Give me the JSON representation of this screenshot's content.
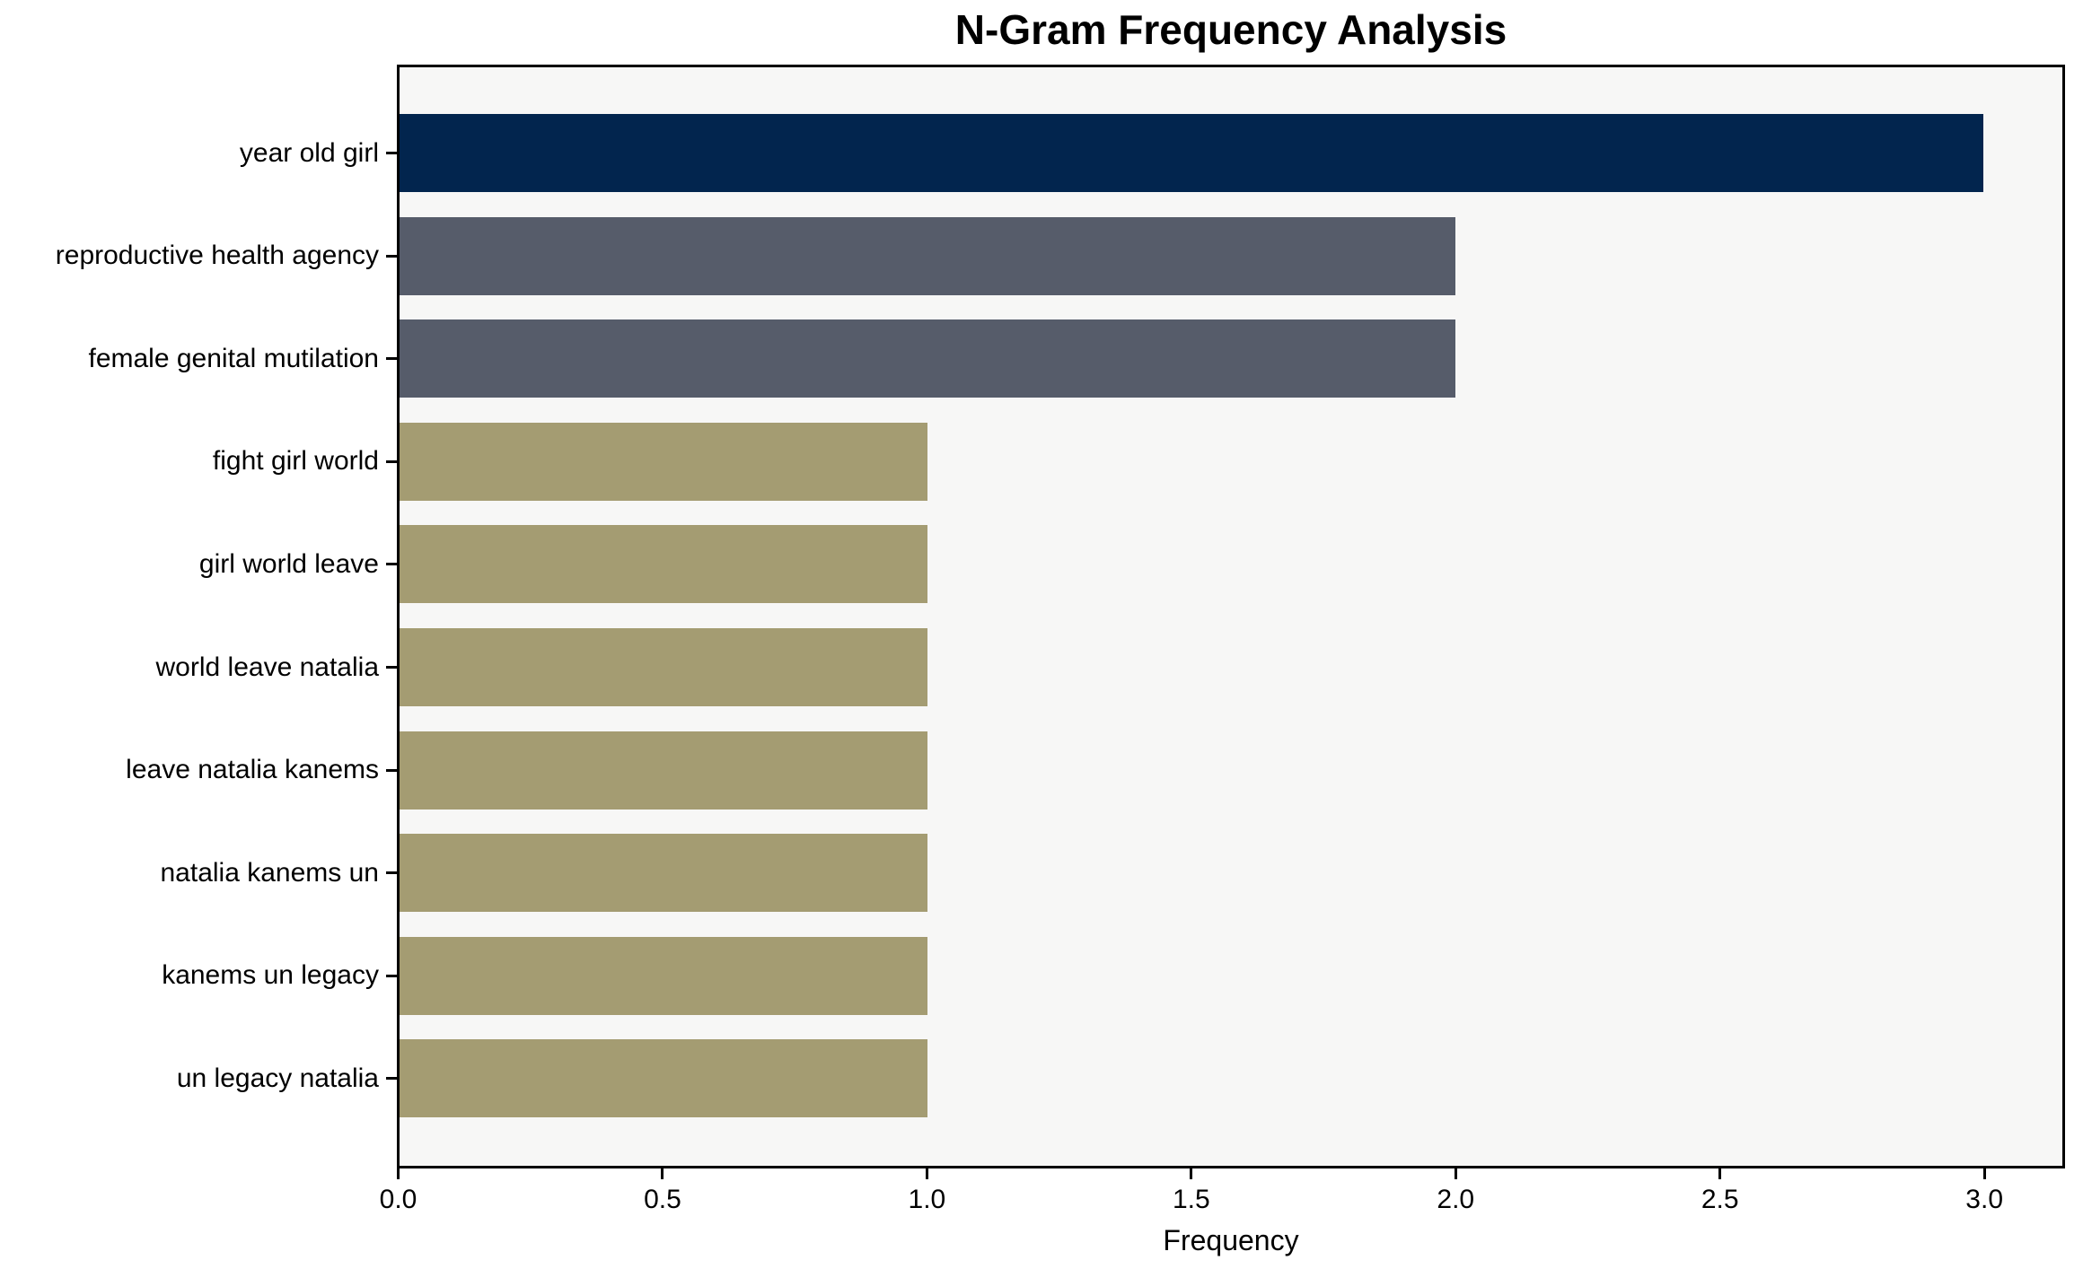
{
  "chart_data": {
    "type": "bar",
    "orientation": "horizontal",
    "title": "N-Gram Frequency Analysis",
    "xlabel": "Frequency",
    "ylabel": "",
    "categories": [
      "year old girl",
      "reproductive health agency",
      "female genital mutilation",
      "fight girl world",
      "girl world leave",
      "world leave natalia",
      "leave natalia kanems",
      "natalia kanems un",
      "kanems un legacy",
      "un legacy natalia"
    ],
    "values": [
      3,
      2,
      2,
      1,
      1,
      1,
      1,
      1,
      1,
      1
    ],
    "bar_colors": [
      "#02254E",
      "#565C6A",
      "#565C6A",
      "#A49C72",
      "#A49C72",
      "#A49C72",
      "#A49C72",
      "#A49C72",
      "#A49C72",
      "#A49C72"
    ],
    "xlim": [
      0,
      3.15
    ],
    "xticks": [
      0,
      0.5,
      1,
      1.5,
      2,
      2.5,
      3
    ],
    "xtick_labels": [
      "0.0",
      "0.5",
      "1.0",
      "1.5",
      "2.0",
      "2.5",
      "3.0"
    ],
    "grid": false,
    "legend": "none",
    "colors": {
      "figure_background": "#ffffff",
      "plot_background": "#f7f7f6",
      "spine": "#000000",
      "text": "#000000"
    }
  }
}
